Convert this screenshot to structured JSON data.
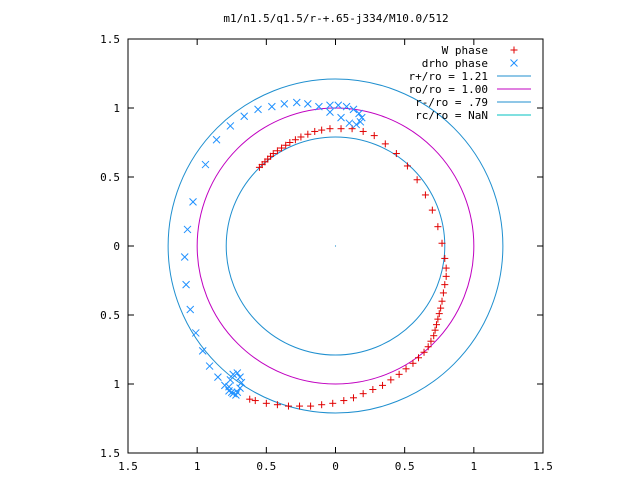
{
  "chart_data": {
    "type": "scatter",
    "title": "m1/n1.5/q1.5/r-+.65-j334/M10.0/512",
    "xlabel": "",
    "ylabel": "",
    "xlim": [
      -1.5,
      1.5
    ],
    "ylim": [
      -1.5,
      1.5
    ],
    "x_ticks": [
      -1.5,
      -1,
      -0.5,
      0,
      0.5,
      1,
      1.5
    ],
    "y_ticks": [
      -1.5,
      -1,
      -0.5,
      0,
      0.5,
      1,
      1.5
    ],
    "x_tick_labels": [
      "1.5",
      "1",
      "0.5",
      "0",
      "0.5",
      "1",
      "1.5"
    ],
    "y_tick_labels": [
      "1.5",
      "1",
      "0.5",
      "0",
      "0.5",
      "1",
      "1.5"
    ],
    "legend_position": "top-right",
    "grid": false,
    "series": [
      {
        "name": "W phase",
        "kind": "points",
        "marker": "plus",
        "color": "#e00000",
        "points": [
          [
            -0.55,
            0.57
          ],
          [
            -0.53,
            0.59
          ],
          [
            -0.51,
            0.61
          ],
          [
            -0.49,
            0.63
          ],
          [
            -0.47,
            0.65
          ],
          [
            -0.45,
            0.67
          ],
          [
            -0.42,
            0.69
          ],
          [
            -0.39,
            0.71
          ],
          [
            -0.36,
            0.73
          ],
          [
            -0.33,
            0.75
          ],
          [
            -0.29,
            0.77
          ],
          [
            -0.25,
            0.79
          ],
          [
            -0.2,
            0.81
          ],
          [
            -0.15,
            0.83
          ],
          [
            -0.1,
            0.84
          ],
          [
            -0.04,
            0.85
          ],
          [
            0.04,
            0.85
          ],
          [
            0.12,
            0.85
          ],
          [
            0.2,
            0.83
          ],
          [
            0.28,
            0.8
          ],
          [
            0.36,
            0.74
          ],
          [
            0.44,
            0.67
          ],
          [
            0.52,
            0.58
          ],
          [
            0.59,
            0.48
          ],
          [
            0.65,
            0.37
          ],
          [
            0.7,
            0.26
          ],
          [
            0.74,
            0.14
          ],
          [
            0.77,
            0.02
          ],
          [
            0.79,
            -0.09
          ],
          [
            0.8,
            -0.16
          ],
          [
            0.8,
            -0.22
          ],
          [
            0.79,
            -0.28
          ],
          [
            0.78,
            -0.34
          ],
          [
            0.77,
            -0.4
          ],
          [
            0.76,
            -0.45
          ],
          [
            0.75,
            -0.49
          ],
          [
            0.74,
            -0.53
          ],
          [
            0.73,
            -0.57
          ],
          [
            0.72,
            -0.61
          ],
          [
            0.71,
            -0.65
          ],
          [
            0.69,
            -0.69
          ],
          [
            0.67,
            -0.73
          ],
          [
            0.64,
            -0.77
          ],
          [
            0.6,
            -0.81
          ],
          [
            0.56,
            -0.85
          ],
          [
            0.51,
            -0.89
          ],
          [
            0.46,
            -0.93
          ],
          [
            0.4,
            -0.97
          ],
          [
            0.34,
            -1.01
          ],
          [
            0.27,
            -1.04
          ],
          [
            0.2,
            -1.07
          ],
          [
            0.13,
            -1.1
          ],
          [
            0.06,
            -1.12
          ],
          [
            -0.02,
            -1.14
          ],
          [
            -0.1,
            -1.15
          ],
          [
            -0.18,
            -1.16
          ],
          [
            -0.26,
            -1.16
          ],
          [
            -0.34,
            -1.16
          ],
          [
            -0.42,
            -1.15
          ],
          [
            -0.5,
            -1.14
          ],
          [
            -0.58,
            -1.12
          ],
          [
            -0.62,
            -1.11
          ]
        ]
      },
      {
        "name": "drho phase",
        "kind": "points",
        "marker": "cross",
        "color": "#1e90ff",
        "points": [
          [
            -0.94,
            0.59
          ],
          [
            -0.86,
            0.77
          ],
          [
            -0.76,
            0.87
          ],
          [
            -0.66,
            0.94
          ],
          [
            -0.56,
            0.99
          ],
          [
            -0.46,
            1.01
          ],
          [
            -0.37,
            1.03
          ],
          [
            -0.28,
            1.04
          ],
          [
            -0.2,
            1.03
          ],
          [
            -0.12,
            1.01
          ],
          [
            -0.04,
            0.97
          ],
          [
            0.04,
            0.93
          ],
          [
            0.1,
            0.89
          ],
          [
            0.15,
            0.88
          ],
          [
            0.18,
            0.9
          ],
          [
            0.19,
            0.93
          ],
          [
            0.17,
            0.96
          ],
          [
            0.13,
            0.99
          ],
          [
            0.08,
            1.01
          ],
          [
            0.02,
            1.02
          ],
          [
            -0.04,
            1.02
          ],
          [
            -1.03,
            0.32
          ],
          [
            -1.07,
            0.12
          ],
          [
            -1.09,
            -0.08
          ],
          [
            -1.08,
            -0.28
          ],
          [
            -1.05,
            -0.46
          ],
          [
            -1.01,
            -0.63
          ],
          [
            -0.96,
            -0.76
          ],
          [
            -0.91,
            -0.87
          ],
          [
            -0.85,
            -0.95
          ],
          [
            -0.8,
            -1.01
          ],
          [
            -0.77,
            -1.05
          ],
          [
            -0.74,
            -1.07
          ],
          [
            -0.71,
            -1.06
          ],
          [
            -0.69,
            -1.03
          ],
          [
            -0.68,
            -0.99
          ],
          [
            -0.69,
            -0.95
          ],
          [
            -0.71,
            -0.92
          ],
          [
            -0.74,
            -0.93
          ],
          [
            -0.76,
            -0.97
          ],
          [
            -0.77,
            -1.02
          ],
          [
            -0.75,
            -1.06
          ],
          [
            -0.72,
            -1.08
          ]
        ]
      },
      {
        "name": "r+/ro = 1.21",
        "kind": "circle",
        "radius": 1.21,
        "color": "#1f8fcf"
      },
      {
        "name": "ro/ro = 1.00",
        "kind": "circle",
        "radius": 1.0,
        "color": "#c000c0"
      },
      {
        "name": "r-/ro = .79",
        "kind": "circle",
        "radius": 0.79,
        "color": "#1f8fcf"
      },
      {
        "name": "rc/ro = NaN",
        "kind": "circle",
        "radius": null,
        "color": "#00c0c0"
      }
    ]
  }
}
